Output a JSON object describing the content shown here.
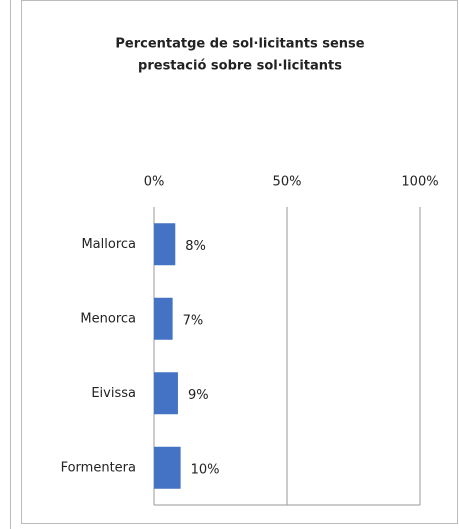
{
  "chart_data": {
    "type": "bar",
    "orientation": "horizontal",
    "title": [
      "Percentatge de sol·licitants sense",
      "prestació sobre sol·licitants"
    ],
    "categories": [
      "Mallorca",
      "Menorca",
      "Eivissa",
      "Formentera"
    ],
    "values": [
      8,
      7,
      9,
      10
    ],
    "value_labels": [
      "8%",
      "7%",
      "9%",
      "10%"
    ],
    "color": "#4472c4",
    "xlim": [
      0,
      100
    ],
    "xticks": [
      {
        "value": 0,
        "label": "0%"
      },
      {
        "value": 50,
        "label": "50%"
      },
      {
        "value": 100,
        "label": "100%"
      }
    ],
    "grid": true
  }
}
